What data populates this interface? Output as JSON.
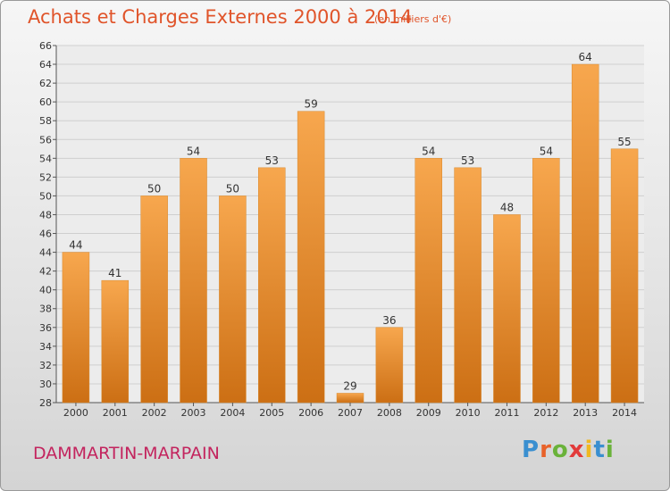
{
  "header": {
    "title": "Achats et Charges Externes 2000 à 2014",
    "subtitle": "(en milliers d'€)"
  },
  "footer": {
    "city": "DAMMARTIN-MARPAIN",
    "logo_text": "Proxiti"
  },
  "colors": {
    "title": "#e0542a",
    "city": "#c3245e",
    "bar_light": "#f7a74e",
    "bar_dark": "#cc6f14",
    "logo_letters": [
      "#3a8fd0",
      "#e8622a",
      "#6ab23a",
      "#e23a3a",
      "#f0b820",
      "#3a8fd0",
      "#6ab23a"
    ]
  },
  "chart_data": {
    "type": "bar",
    "categories": [
      "2000",
      "2001",
      "2002",
      "2003",
      "2004",
      "2005",
      "2006",
      "2007",
      "2008",
      "2009",
      "2010",
      "2011",
      "2012",
      "2013",
      "2014"
    ],
    "values": [
      44,
      41,
      50,
      54,
      50,
      53,
      59,
      29,
      36,
      54,
      53,
      48,
      54,
      64,
      55
    ],
    "ylim": [
      28,
      66
    ],
    "ytick_step": 2,
    "grid": "horizontal"
  }
}
